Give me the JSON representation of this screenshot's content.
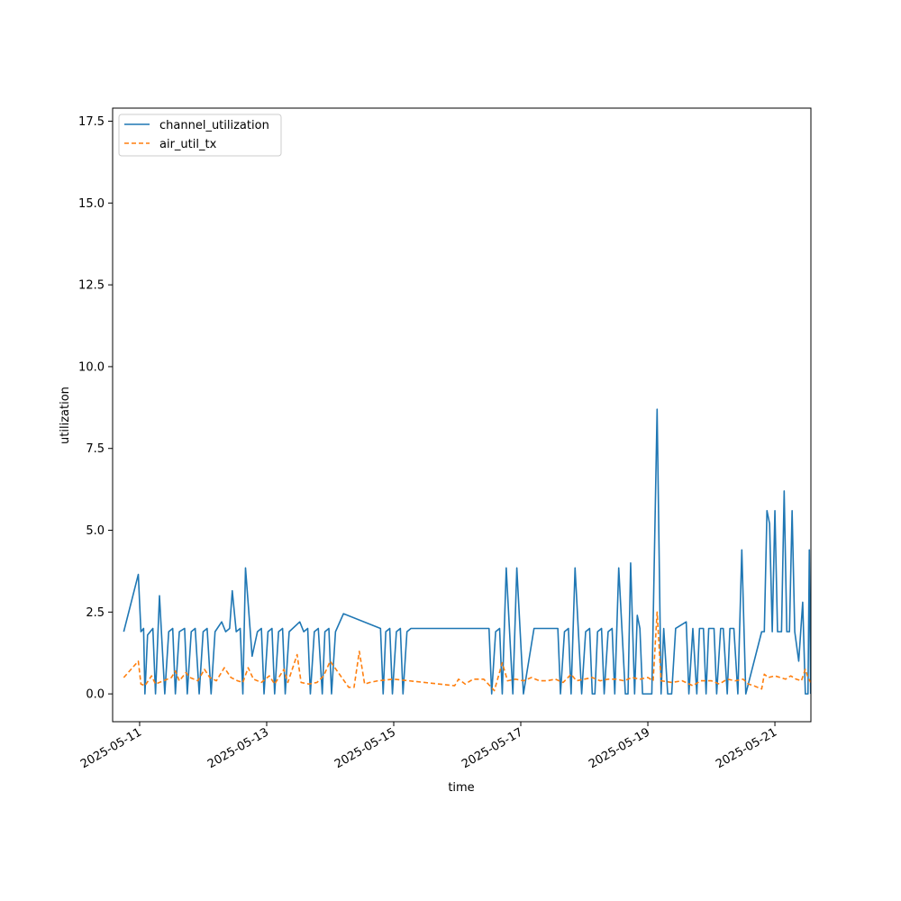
{
  "chart_data": {
    "type": "line",
    "xlabel": "time",
    "ylabel": "utilization",
    "xlim": [
      "2025-05-10T13:48",
      "2025-05-21T13:36"
    ],
    "ylim": [
      -0.85,
      17.9
    ],
    "x_ticks": [
      "2025-05-11",
      "2025-05-13",
      "2025-05-15",
      "2025-05-17",
      "2025-05-19",
      "2025-05-21"
    ],
    "y_ticks": [
      0.0,
      2.5,
      5.0,
      7.5,
      10.0,
      12.5,
      15.0,
      17.5
    ],
    "y_tick_labels": [
      "0.0",
      "2.5",
      "5.0",
      "7.5",
      "10.0",
      "12.5",
      "15.0",
      "17.5"
    ],
    "grid": false,
    "legend_position": "upper-left",
    "colors": {
      "channel_utilization": "#1f77b4",
      "air_util_tx": "#ff7f0e"
    },
    "series": [
      {
        "name": "channel_utilization",
        "style": "solid",
        "color": "#1f77b4",
        "points": [
          [
            "2025-05-10T18:00",
            1.9
          ],
          [
            "2025-05-10T23:30",
            3.65
          ],
          [
            "2025-05-11T00:30",
            1.9
          ],
          [
            "2025-05-11T01:30",
            2.0
          ],
          [
            "2025-05-11T02:00",
            0.0
          ],
          [
            "2025-05-11T03:00",
            1.8
          ],
          [
            "2025-05-11T05:00",
            2.0
          ],
          [
            "2025-05-11T06:00",
            0.0
          ],
          [
            "2025-05-11T07:30",
            3.0
          ],
          [
            "2025-05-11T09:30",
            0.0
          ],
          [
            "2025-05-11T11:00",
            1.9
          ],
          [
            "2025-05-11T12:30",
            2.0
          ],
          [
            "2025-05-11T13:30",
            0.0
          ],
          [
            "2025-05-11T15:00",
            1.9
          ],
          [
            "2025-05-11T17:00",
            2.0
          ],
          [
            "2025-05-11T18:00",
            0.0
          ],
          [
            "2025-05-11T19:30",
            1.9
          ],
          [
            "2025-05-11T21:00",
            2.0
          ],
          [
            "2025-05-11T22:30",
            0.0
          ],
          [
            "2025-05-12T00:00",
            1.9
          ],
          [
            "2025-05-12T01:30",
            2.0
          ],
          [
            "2025-05-12T03:00",
            0.0
          ],
          [
            "2025-05-12T04:30",
            1.9
          ],
          [
            "2025-05-12T07:00",
            2.2
          ],
          [
            "2025-05-12T08:30",
            1.9
          ],
          [
            "2025-05-12T10:00",
            2.0
          ],
          [
            "2025-05-12T11:00",
            3.15
          ],
          [
            "2025-05-12T12:30",
            1.9
          ],
          [
            "2025-05-12T14:00",
            2.0
          ],
          [
            "2025-05-12T15:00",
            0.0
          ],
          [
            "2025-05-12T16:00",
            3.85
          ],
          [
            "2025-05-12T18:30",
            1.15
          ],
          [
            "2025-05-12T20:30",
            1.9
          ],
          [
            "2025-05-12T22:00",
            2.0
          ],
          [
            "2025-05-12T23:00",
            0.0
          ],
          [
            "2025-05-13T00:30",
            1.9
          ],
          [
            "2025-05-13T02:00",
            2.0
          ],
          [
            "2025-05-13T03:00",
            0.0
          ],
          [
            "2025-05-13T04:30",
            1.9
          ],
          [
            "2025-05-13T06:00",
            2.0
          ],
          [
            "2025-05-13T07:00",
            0.0
          ],
          [
            "2025-05-13T08:30",
            1.9
          ],
          [
            "2025-05-13T12:30",
            2.2
          ],
          [
            "2025-05-13T14:00",
            1.9
          ],
          [
            "2025-05-13T15:30",
            2.0
          ],
          [
            "2025-05-13T16:30",
            0.0
          ],
          [
            "2025-05-13T18:00",
            1.9
          ],
          [
            "2025-05-13T19:30",
            2.0
          ],
          [
            "2025-05-13T21:00",
            0.0
          ],
          [
            "2025-05-13T22:00",
            1.9
          ],
          [
            "2025-05-13T23:30",
            2.0
          ],
          [
            "2025-05-14T00:30",
            0.0
          ],
          [
            "2025-05-14T02:00",
            1.9
          ],
          [
            "2025-05-14T05:00",
            2.45
          ],
          [
            "2025-05-14T19:00",
            2.0
          ],
          [
            "2025-05-14T20:00",
            0.0
          ],
          [
            "2025-05-14T21:00",
            1.9
          ],
          [
            "2025-05-14T22:30",
            2.0
          ],
          [
            "2025-05-14T23:30",
            0.0
          ],
          [
            "2025-05-15T01:00",
            1.9
          ],
          [
            "2025-05-15T02:30",
            2.0
          ],
          [
            "2025-05-15T03:30",
            0.0
          ],
          [
            "2025-05-15T05:00",
            1.9
          ],
          [
            "2025-05-15T06:30",
            2.0
          ],
          [
            "2025-05-16T12:00",
            2.0
          ],
          [
            "2025-05-16T13:00",
            0.0
          ],
          [
            "2025-05-16T14:30",
            1.9
          ],
          [
            "2025-05-16T16:00",
            2.0
          ],
          [
            "2025-05-16T17:00",
            0.0
          ],
          [
            "2025-05-16T18:30",
            3.85
          ],
          [
            "2025-05-16T21:00",
            0.0
          ],
          [
            "2025-05-16T22:30",
            3.85
          ],
          [
            "2025-05-17T01:00",
            0.0
          ],
          [
            "2025-05-17T05:00",
            2.0
          ],
          [
            "2025-05-17T14:00",
            2.0
          ],
          [
            "2025-05-17T15:00",
            0.0
          ],
          [
            "2025-05-17T16:30",
            1.9
          ],
          [
            "2025-05-17T18:00",
            2.0
          ],
          [
            "2025-05-17T19:00",
            0.0
          ],
          [
            "2025-05-17T20:30",
            3.85
          ],
          [
            "2025-05-17T23:00",
            0.0
          ],
          [
            "2025-05-18T00:30",
            1.9
          ],
          [
            "2025-05-18T02:00",
            2.0
          ],
          [
            "2025-05-18T03:00",
            0.0
          ],
          [
            "2025-05-18T04:00",
            0.0
          ],
          [
            "2025-05-18T05:00",
            1.9
          ],
          [
            "2025-05-18T06:30",
            2.0
          ],
          [
            "2025-05-18T07:30",
            0.0
          ],
          [
            "2025-05-18T09:00",
            1.9
          ],
          [
            "2025-05-18T10:30",
            2.0
          ],
          [
            "2025-05-18T11:30",
            0.0
          ],
          [
            "2025-05-18T13:00",
            3.85
          ],
          [
            "2025-05-18T15:30",
            0.0
          ],
          [
            "2025-05-18T16:30",
            0.0
          ],
          [
            "2025-05-18T17:30",
            4.0
          ],
          [
            "2025-05-18T19:00",
            0.0
          ],
          [
            "2025-05-18T20:00",
            2.4
          ],
          [
            "2025-05-18T21:00",
            2.0
          ],
          [
            "2025-05-18T22:00",
            0.0
          ],
          [
            "2025-05-19T00:00",
            0.0
          ],
          [
            "2025-05-19T01:30",
            0.0
          ],
          [
            "2025-05-19T03:30",
            8.7
          ],
          [
            "2025-05-19T05:00",
            0.0
          ],
          [
            "2025-05-19T06:00",
            2.0
          ],
          [
            "2025-05-19T07:30",
            0.0
          ],
          [
            "2025-05-19T09:00",
            0.0
          ],
          [
            "2025-05-19T10:30",
            2.0
          ],
          [
            "2025-05-19T14:30",
            2.2
          ],
          [
            "2025-05-19T15:30",
            0.0
          ],
          [
            "2025-05-19T17:00",
            2.0
          ],
          [
            "2025-05-19T18:30",
            0.0
          ],
          [
            "2025-05-19T19:30",
            2.0
          ],
          [
            "2025-05-19T21:00",
            2.0
          ],
          [
            "2025-05-19T22:00",
            0.0
          ],
          [
            "2025-05-19T23:00",
            2.0
          ],
          [
            "2025-05-20T01:00",
            2.0
          ],
          [
            "2025-05-20T02:00",
            0.0
          ],
          [
            "2025-05-20T03:30",
            2.0
          ],
          [
            "2025-05-20T04:30",
            2.0
          ],
          [
            "2025-05-20T06:00",
            0.0
          ],
          [
            "2025-05-20T07:00",
            2.0
          ],
          [
            "2025-05-20T08:30",
            2.0
          ],
          [
            "2025-05-20T10:00",
            0.0
          ],
          [
            "2025-05-20T11:30",
            4.4
          ],
          [
            "2025-05-20T13:00",
            0.0
          ],
          [
            "2025-05-20T19:00",
            1.9
          ],
          [
            "2025-05-20T20:00",
            1.9
          ],
          [
            "2025-05-20T21:00",
            5.6
          ],
          [
            "2025-05-20T22:00",
            5.2
          ],
          [
            "2025-05-20T23:00",
            1.9
          ],
          [
            "2025-05-21T00:00",
            5.6
          ],
          [
            "2025-05-21T01:00",
            1.9
          ],
          [
            "2025-05-21T02:30",
            1.9
          ],
          [
            "2025-05-21T03:30",
            6.2
          ],
          [
            "2025-05-21T04:30",
            1.9
          ],
          [
            "2025-05-21T05:30",
            1.9
          ],
          [
            "2025-05-21T06:30",
            5.6
          ],
          [
            "2025-05-21T07:30",
            1.9
          ],
          [
            "2025-05-21T09:00",
            1.0
          ],
          [
            "2025-05-21T10:30",
            2.8
          ],
          [
            "2025-05-21T11:30",
            0.0
          ],
          [
            "2025-05-21T12:30",
            0.0
          ],
          [
            "2025-05-21T13:00",
            4.4
          ],
          [
            "2025-05-21T13:30",
            0.0
          ]
        ]
      },
      {
        "name": "air_util_tx",
        "style": "dashed",
        "color": "#ff7f0e",
        "points": [
          [
            "2025-05-10T18:00",
            0.5
          ],
          [
            "2025-05-10T23:30",
            1.0
          ],
          [
            "2025-05-11T00:30",
            0.3
          ],
          [
            "2025-05-11T02:00",
            0.25
          ],
          [
            "2025-05-11T04:30",
            0.55
          ],
          [
            "2025-05-11T06:00",
            0.3
          ],
          [
            "2025-05-11T09:00",
            0.4
          ],
          [
            "2025-05-11T12:00",
            0.5
          ],
          [
            "2025-05-11T13:30",
            0.7
          ],
          [
            "2025-05-11T15:00",
            0.4
          ],
          [
            "2025-05-11T17:30",
            0.65
          ],
          [
            "2025-05-11T19:00",
            0.5
          ],
          [
            "2025-05-11T22:00",
            0.4
          ],
          [
            "2025-05-12T00:30",
            0.75
          ],
          [
            "2025-05-12T02:30",
            0.5
          ],
          [
            "2025-05-12T05:00",
            0.4
          ],
          [
            "2025-05-12T08:00",
            0.8
          ],
          [
            "2025-05-12T10:30",
            0.5
          ],
          [
            "2025-05-12T13:00",
            0.4
          ],
          [
            "2025-05-12T15:00",
            0.35
          ],
          [
            "2025-05-12T17:00",
            0.8
          ],
          [
            "2025-05-12T19:00",
            0.45
          ],
          [
            "2025-05-12T22:00",
            0.35
          ],
          [
            "2025-05-13T01:00",
            0.55
          ],
          [
            "2025-05-13T03:00",
            0.3
          ],
          [
            "2025-05-13T06:30",
            0.75
          ],
          [
            "2025-05-13T08:00",
            0.35
          ],
          [
            "2025-05-13T11:30",
            1.2
          ],
          [
            "2025-05-13T13:00",
            0.35
          ],
          [
            "2025-05-13T16:00",
            0.3
          ],
          [
            "2025-05-13T19:00",
            0.35
          ],
          [
            "2025-05-13T21:30",
            0.55
          ],
          [
            "2025-05-14T00:00",
            1.0
          ],
          [
            "2025-05-14T07:00",
            0.2
          ],
          [
            "2025-05-14T09:00",
            0.2
          ],
          [
            "2025-05-14T11:00",
            1.3
          ],
          [
            "2025-05-14T13:00",
            0.3
          ],
          [
            "2025-05-14T15:00",
            0.35
          ],
          [
            "2025-05-14T18:00",
            0.4
          ],
          [
            "2025-05-15T00:00",
            0.45
          ],
          [
            "2025-05-15T23:00",
            0.25
          ],
          [
            "2025-05-16T00:30",
            0.45
          ],
          [
            "2025-05-16T03:00",
            0.3
          ],
          [
            "2025-05-16T06:00",
            0.45
          ],
          [
            "2025-05-16T10:00",
            0.45
          ],
          [
            "2025-05-16T14:00",
            0.1
          ],
          [
            "2025-05-16T17:00",
            0.95
          ],
          [
            "2025-05-16T19:00",
            0.4
          ],
          [
            "2025-05-16T22:00",
            0.45
          ],
          [
            "2025-05-17T01:00",
            0.4
          ],
          [
            "2025-05-17T04:00",
            0.5
          ],
          [
            "2025-05-17T07:00",
            0.4
          ],
          [
            "2025-05-17T10:00",
            0.4
          ],
          [
            "2025-05-17T13:00",
            0.45
          ],
          [
            "2025-05-17T16:00",
            0.35
          ],
          [
            "2025-05-17T19:00",
            0.6
          ],
          [
            "2025-05-17T21:00",
            0.4
          ],
          [
            "2025-05-18T00:00",
            0.45
          ],
          [
            "2025-05-18T03:00",
            0.5
          ],
          [
            "2025-05-18T06:00",
            0.4
          ],
          [
            "2025-05-18T09:00",
            0.45
          ],
          [
            "2025-05-18T12:00",
            0.45
          ],
          [
            "2025-05-18T15:00",
            0.4
          ],
          [
            "2025-05-18T18:00",
            0.5
          ],
          [
            "2025-05-18T21:00",
            0.45
          ],
          [
            "2025-05-19T00:00",
            0.5
          ],
          [
            "2025-05-19T02:00",
            0.4
          ],
          [
            "2025-05-19T03:30",
            2.5
          ],
          [
            "2025-05-19T05:00",
            0.4
          ],
          [
            "2025-05-19T09:00",
            0.35
          ],
          [
            "2025-05-19T13:00",
            0.4
          ],
          [
            "2025-05-19T17:00",
            0.25
          ],
          [
            "2025-05-19T20:00",
            0.4
          ],
          [
            "2025-05-20T00:00",
            0.4
          ],
          [
            "2025-05-20T03:00",
            0.3
          ],
          [
            "2025-05-20T06:00",
            0.45
          ],
          [
            "2025-05-20T09:00",
            0.4
          ],
          [
            "2025-05-20T12:00",
            0.45
          ],
          [
            "2025-05-20T14:00",
            0.3
          ],
          [
            "2025-05-20T16:00",
            0.25
          ],
          [
            "2025-05-20T19:00",
            0.15
          ],
          [
            "2025-05-20T20:00",
            0.6
          ],
          [
            "2025-05-20T21:30",
            0.5
          ],
          [
            "2025-05-21T00:00",
            0.55
          ],
          [
            "2025-05-21T02:00",
            0.5
          ],
          [
            "2025-05-21T04:00",
            0.45
          ],
          [
            "2025-05-21T06:00",
            0.55
          ],
          [
            "2025-05-21T08:00",
            0.45
          ],
          [
            "2025-05-21T10:00",
            0.4
          ],
          [
            "2025-05-21T11:30",
            0.75
          ],
          [
            "2025-05-21T12:30",
            0.5
          ],
          [
            "2025-05-21T13:30",
            0.35
          ]
        ]
      }
    ]
  }
}
